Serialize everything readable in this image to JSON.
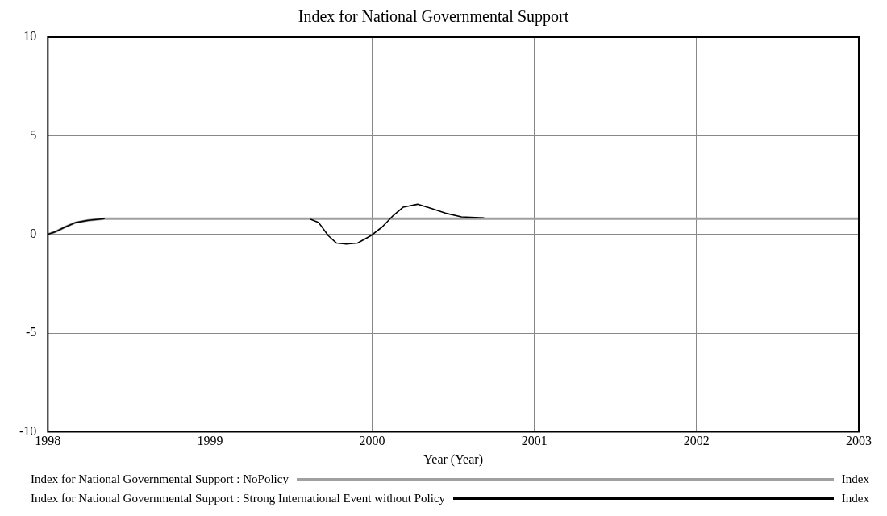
{
  "chart_data": {
    "type": "line",
    "title": "Index for National Governmental Support",
    "xlabel": "Year (Year)",
    "xlim": [
      1998,
      2003
    ],
    "xticks": [
      1998,
      1999,
      2000,
      2001,
      2002,
      2003
    ],
    "ylim": [
      -10,
      10
    ],
    "yticks": [
      -10,
      -5,
      0,
      5,
      10
    ],
    "grid": true,
    "legend": "bottom",
    "marker": "none",
    "line_style": "solid",
    "series": [
      {
        "name": "Index for National Governmental Support : NoPolicy",
        "color": "#a0a0a0",
        "x": [
          1998,
          1998.05,
          1998.1,
          1998.17,
          1998.25,
          1998.35,
          2003
        ],
        "values": [
          0,
          0.15,
          0.35,
          0.6,
          0.72,
          0.8,
          0.8
        ]
      },
      {
        "name": "Index for National Governmental Support : Strong International Event without Policy",
        "color": "#000000",
        "x": [
          1998,
          1998.05,
          1998.1,
          1998.17,
          1998.25,
          1998.35,
          1999,
          1999.62,
          1999.67,
          1999.73,
          1999.78,
          1999.84,
          1999.91,
          1999.99,
          2000.06,
          2000.13,
          2000.19,
          2000.28,
          2000.36,
          2000.45,
          2000.55,
          2000.69
        ],
        "values": [
          0,
          0.15,
          0.35,
          0.6,
          0.72,
          0.8,
          null,
          0.77,
          0.6,
          -0.07,
          -0.44,
          -0.49,
          -0.44,
          -0.07,
          0.37,
          0.96,
          1.38,
          1.53,
          1.33,
          1.08,
          0.89,
          0.84
        ]
      }
    ],
    "annotations": [
      "Index",
      "Index"
    ]
  }
}
